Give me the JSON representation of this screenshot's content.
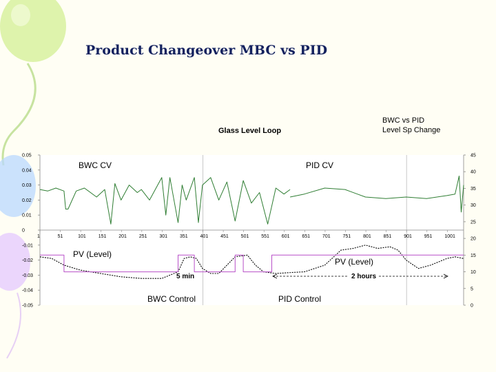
{
  "slide_title": "Product Changeover MBC vs PID",
  "chart_data": {
    "type": "line",
    "title": "Glass Level Loop",
    "note": [
      "BWC vs PID",
      "Level Sp Change"
    ],
    "x_ticks": [
      1,
      51,
      101,
      151,
      201,
      251,
      301,
      351,
      401,
      451,
      501,
      551,
      601,
      651,
      701,
      751,
      801,
      851,
      901,
      951,
      1001
    ],
    "xlim": [
      1,
      1041
    ],
    "y_left_ticks": [
      "0.05",
      "0.04",
      "0.03",
      "0.02",
      "0.01",
      "0",
      "-0.01",
      "-0.02",
      "-0.03",
      "-0.04",
      "-0.05"
    ],
    "ylim_left": [
      -0.05,
      0.05
    ],
    "y_right_ticks": [
      "45",
      "40",
      "35",
      "30",
      "25",
      "20",
      "15",
      "10",
      "5",
      "0"
    ],
    "ylim_right": [
      0,
      45
    ],
    "grid": "vertical lines at x = 401 and x = 901",
    "series": [
      {
        "name": "BWC CV",
        "axis": "left",
        "color": "#2e7d32",
        "x": [
          1,
          20,
          40,
          60,
          64,
          70,
          90,
          110,
          140,
          160,
          175,
          185,
          200,
          220,
          240,
          250,
          270,
          290,
          300,
          310,
          320,
          340,
          350,
          360,
          380,
          390,
          400,
          420,
          440,
          460,
          480,
          500,
          520,
          540,
          560,
          580,
          600,
          615
        ],
        "y": [
          0.027,
          0.026,
          0.028,
          0.026,
          0.014,
          0.014,
          0.026,
          0.028,
          0.022,
          0.027,
          0.004,
          0.031,
          0.02,
          0.03,
          0.025,
          0.027,
          0.02,
          0.03,
          0.035,
          0.01,
          0.035,
          0.005,
          0.03,
          0.02,
          0.035,
          0.005,
          0.03,
          0.035,
          0.02,
          0.032,
          0.006,
          0.033,
          0.018,
          0.025,
          0.004,
          0.028,
          0.024,
          0.027
        ]
      },
      {
        "name": "PID CV",
        "axis": "left",
        "color": "#2e7d32",
        "x": [
          615,
          650,
          700,
          750,
          780,
          800,
          850,
          900,
          950,
          1000,
          1020,
          1030,
          1035,
          1041
        ],
        "y": [
          0.022,
          0.024,
          0.028,
          0.027,
          0.024,
          0.022,
          0.021,
          0.022,
          0.021,
          0.023,
          0.024,
          0.036,
          0.012,
          0.03
        ]
      },
      {
        "name": "PV (Level)",
        "axis": "right",
        "color": "#000000",
        "dashed": true,
        "x": [
          1,
          30,
          60,
          100,
          150,
          200,
          250,
          300,
          340,
          355,
          370,
          385,
          400,
          420,
          440,
          460,
          480,
          510,
          530,
          550,
          580,
          620,
          650,
          700,
          740,
          770,
          800,
          830,
          860,
          880,
          900,
          930,
          960,
          1000,
          1020,
          1040
        ],
        "y": [
          14.5,
          14,
          12,
          10.5,
          9.5,
          8.5,
          8,
          8,
          10,
          14,
          14.5,
          14,
          11,
          9.5,
          9.5,
          12,
          14.5,
          15,
          12,
          10,
          9.5,
          9.8,
          10,
          12,
          16.5,
          17,
          18,
          17,
          17.5,
          16.5,
          13.5,
          11,
          12,
          14,
          14.5,
          14
        ]
      },
      {
        "name": "Level Sp",
        "axis": "right",
        "color": "#b84fc8",
        "x": [
          1,
          60,
          60,
          340,
          340,
          380,
          380,
          480,
          480,
          500,
          500,
          570,
          570,
          1041
        ],
        "y": [
          15,
          15,
          10,
          10,
          15,
          15,
          10,
          10,
          15,
          15,
          10,
          10,
          15,
          15
        ]
      }
    ],
    "annotations": [
      "BWC CV",
      "PID CV",
      "PV (Level)",
      "PV (Level)",
      "5 min",
      "2 hours",
      "BWC Control",
      "PID Control"
    ]
  },
  "colors": {
    "cv_line": "#2e7d32",
    "setpoint": "#b84fc8",
    "title": "#14225f",
    "grid": "#c8c8c8"
  }
}
